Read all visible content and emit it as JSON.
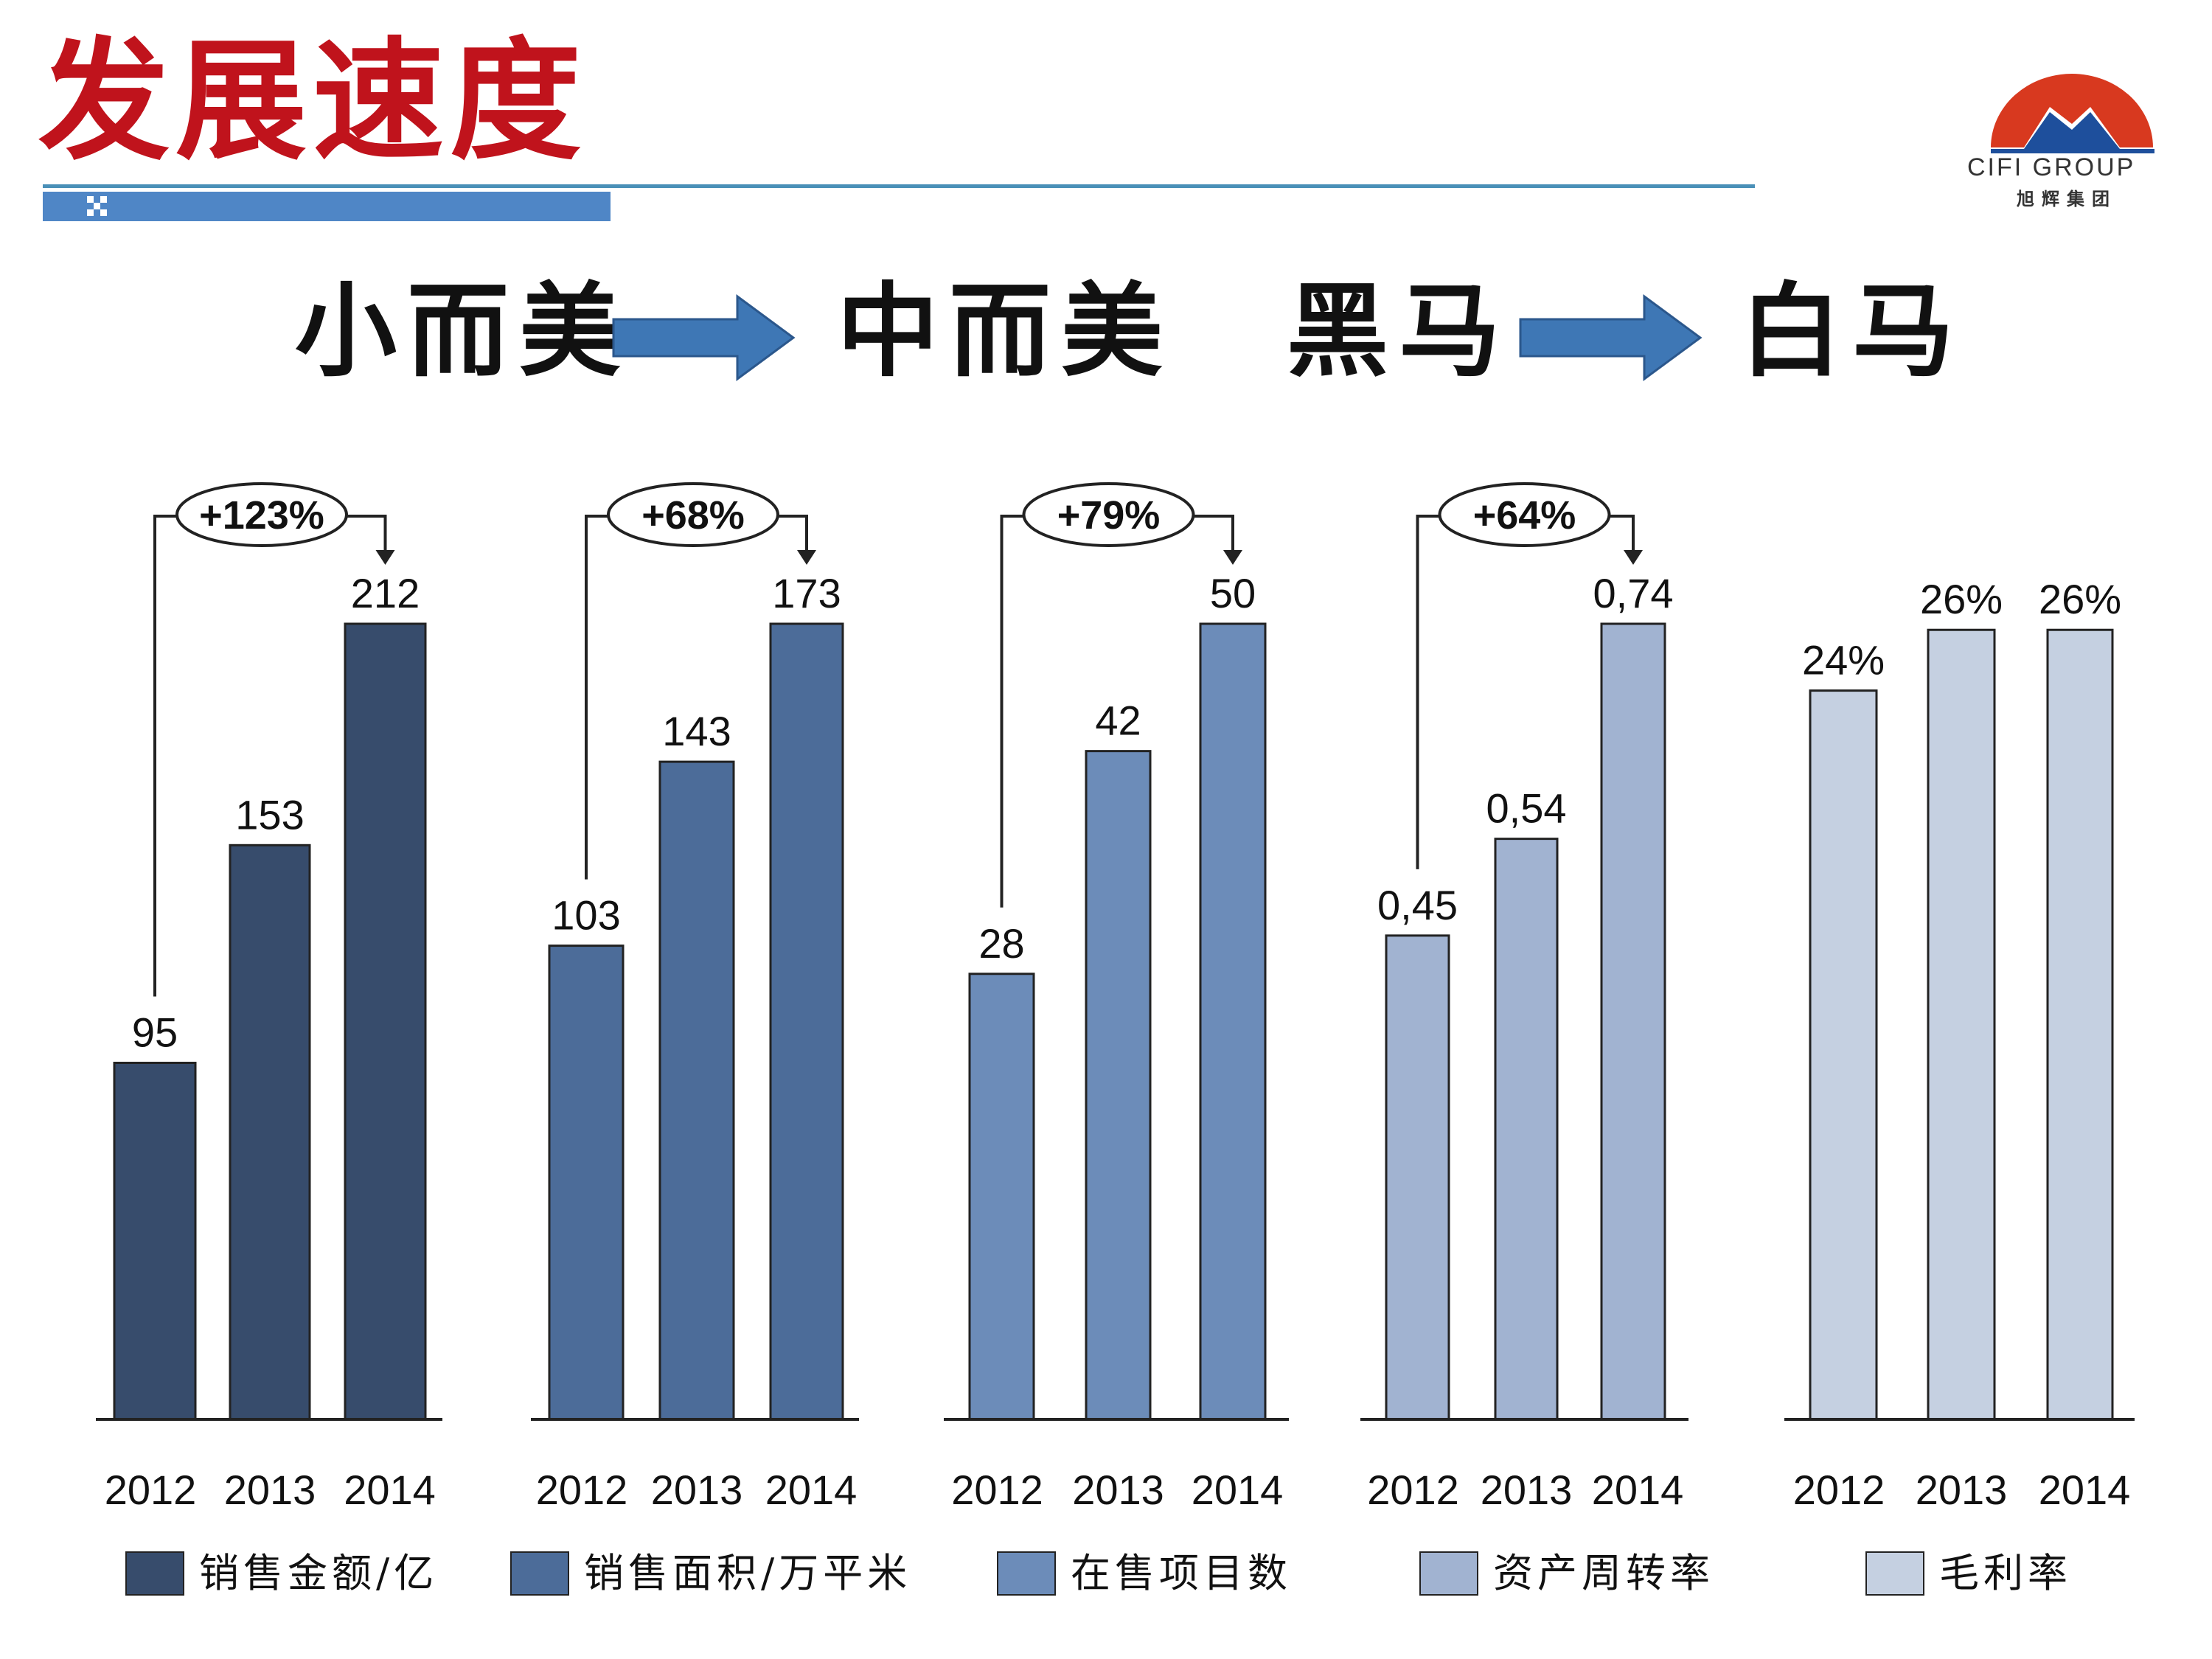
{
  "header": {
    "title": "发展速度"
  },
  "logo": {
    "text": "CIFI GROUP",
    "subtext": "旭辉集团",
    "icon": "mountain-logo-icon",
    "color_red": "#d8391f",
    "color_blue": "#1e4f9c"
  },
  "tagline": {
    "small_beauty": "小而美",
    "mid_beauty": "中而美",
    "dark_horse": "黑马",
    "white_horse": "白马",
    "arrow_icon": "right-arrow-icon",
    "arrow_color": "#3e77b5"
  },
  "chart_data": [
    {
      "type": "bar",
      "categories": [
        "2012",
        "2013",
        "2014"
      ],
      "values": [
        95,
        153,
        212
      ],
      "labels": [
        "95",
        "153",
        "212"
      ],
      "growth": "+123%",
      "legend": "销售金额/亿",
      "color": "#374c6c"
    },
    {
      "type": "bar",
      "categories": [
        "2012",
        "2013",
        "2014"
      ],
      "values": [
        103,
        143,
        173
      ],
      "labels": [
        "103",
        "143",
        "173"
      ],
      "growth": "+68%",
      "legend": "销售面积/万平米",
      "color": "#4c6c99"
    },
    {
      "type": "bar",
      "categories": [
        "2012",
        "2013",
        "2014"
      ],
      "values": [
        28,
        42,
        50
      ],
      "labels": [
        "28",
        "42",
        "50"
      ],
      "growth": "+79%",
      "legend": "在售项目数",
      "color": "#6c8cb9"
    },
    {
      "type": "bar",
      "categories": [
        "2012",
        "2013",
        "2014"
      ],
      "values": [
        0.45,
        0.54,
        0.74
      ],
      "labels": [
        "0,45",
        "0,54",
        "0,74"
      ],
      "growth": "+64%",
      "legend": "资产周转率",
      "color": "#a1b3d1"
    },
    {
      "type": "bar",
      "categories": [
        "2012",
        "2013",
        "2014"
      ],
      "values": [
        24,
        26,
        26
      ],
      "labels": [
        "24%",
        "26%",
        "26%"
      ],
      "growth": "",
      "legend": "毛利率",
      "color": "#c5d0e1"
    }
  ]
}
